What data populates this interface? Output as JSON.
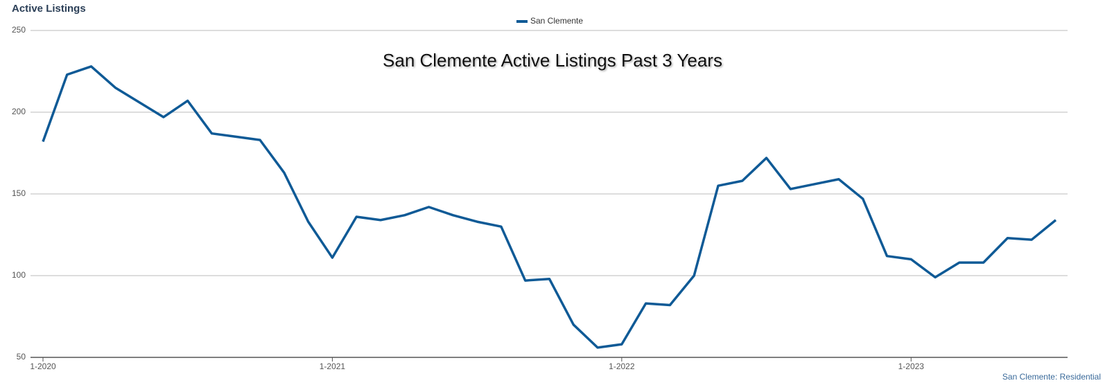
{
  "chart_data": {
    "type": "line",
    "title": "Active Listings",
    "annotation": "San Clemente Active Listings Past 3 Years",
    "credit": "San Clemente: Residential",
    "categories": [
      "1-2020",
      null,
      null,
      null,
      null,
      null,
      null,
      null,
      null,
      null,
      null,
      null,
      "1-2021",
      null,
      null,
      null,
      null,
      null,
      null,
      null,
      null,
      null,
      null,
      null,
      "1-2022",
      null,
      null,
      null,
      null,
      null,
      null,
      null,
      null,
      null,
      null,
      null,
      "1-2023",
      null,
      null,
      null,
      null,
      null,
      null
    ],
    "series": [
      {
        "name": "San Clemente",
        "color": "#0f5a96",
        "values": [
          182,
          223,
          228,
          215,
          206,
          197,
          207,
          187,
          185,
          183,
          163,
          133,
          111,
          136,
          134,
          137,
          142,
          137,
          133,
          130,
          97,
          98,
          70,
          56,
          58,
          83,
          82,
          100,
          155,
          158,
          172,
          153,
          156,
          159,
          147,
          112,
          110,
          99,
          108,
          108,
          123,
          122,
          134
        ]
      }
    ],
    "ylim": [
      50,
      250
    ],
    "yticks": [
      50,
      100,
      150,
      200,
      250
    ],
    "grid": true,
    "legend": "top"
  }
}
